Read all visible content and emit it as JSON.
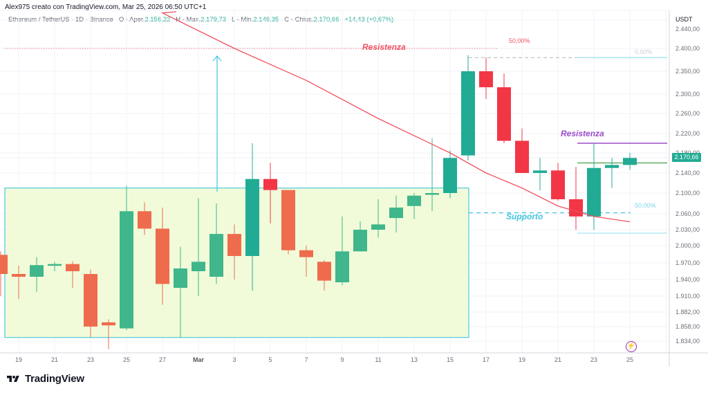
{
  "header": {
    "credit": "Alex975 creato con TradingView.com, Mar 25, 2026 06:50 UTC+1",
    "symbol": "Ethereum / TetherUS · 1D · Binance",
    "open_label": "O - Aper.",
    "open_value": "2.156,22",
    "high_label": "H - Max.",
    "high_value": "2.179,73",
    "low_label": "L - Min.",
    "low_value": "2.146,35",
    "close_label": "C - Chius.",
    "close_value": "2.170,66",
    "change": "+14,43 (+0,67%)"
  },
  "price_axis": {
    "unit": "USDT",
    "current_price": "2.170,66",
    "ticks": [
      "2.440,00",
      "2.400,00",
      "2.350,00",
      "2.300,00",
      "2.260,00",
      "2.220,00",
      "2.180,00",
      "2.140,00",
      "2.100,00",
      "2.060,00",
      "2.030,00",
      "2.000,00",
      "1.970,00",
      "1.940,00",
      "1.910,00",
      "1.882,00",
      "1.858,00",
      "1.834,00"
    ]
  },
  "time_axis": {
    "ticks": [
      "19",
      "21",
      "23",
      "25",
      "27",
      "Mar",
      "3",
      "5",
      "7",
      "9",
      "11",
      "13",
      "15",
      "17",
      "19",
      "21",
      "23",
      "25"
    ]
  },
  "annotations": {
    "resistance_top": "Resistenza",
    "resistance_right": "Resistenza",
    "support": "Supporto",
    "fib_50_top": "50,00%",
    "fib_0": "0,00%",
    "fib_50_bottom": "50,00%"
  },
  "branding": {
    "logo_text": "TradingView"
  },
  "colors": {
    "up": "#22ab94",
    "down": "#f23645",
    "up_in_box": "#3fb68b",
    "down_in_box": "#ee6c4d",
    "ma_line": "#f0525f",
    "box_fill": "#f1fbd9",
    "box_border": "#4dc9dc",
    "resistance_purple": "#9c4bc7",
    "support_cyan": "#3fc6e0"
  },
  "chart_data": {
    "type": "candlestick",
    "title": "Ethereum / TetherUS · 1D · Binance",
    "xlabel": "",
    "ylabel": "USDT",
    "ylim": [
      1820,
      2450
    ],
    "grid": true,
    "categories": [
      "Feb 18",
      "Feb 19",
      "Feb 20",
      "Feb 21",
      "Feb 22",
      "Feb 23",
      "Feb 24",
      "Feb 25",
      "Feb 26",
      "Feb 27",
      "Feb 28",
      "Mar 1",
      "Mar 2",
      "Mar 3",
      "Mar 4",
      "Mar 5",
      "Mar 6",
      "Mar 7",
      "Mar 8",
      "Mar 9",
      "Mar 10",
      "Mar 11",
      "Mar 12",
      "Mar 13",
      "Mar 14",
      "Mar 15",
      "Mar 16",
      "Mar 17",
      "Mar 18",
      "Mar 19",
      "Mar 20",
      "Mar 21",
      "Mar 22",
      "Mar 23",
      "Mar 24",
      "Mar 25"
    ],
    "series": [
      {
        "name": "open",
        "values": [
          1984,
          1950,
          1945,
          1966,
          1968,
          1950,
          1865,
          1855,
          2065,
          2032,
          1925,
          1955,
          1945,
          2022,
          1982,
          2128,
          2106,
          1992,
          1972,
          1935,
          1990,
          2030,
          2052,
          2075,
          2100,
          2100,
          2175,
          2350,
          2315,
          2205,
          2140,
          2145,
          2088,
          2055,
          2150,
          2156
        ]
      },
      {
        "name": "high",
        "values": [
          1990,
          1965,
          1980,
          1972,
          1973,
          1958,
          1870,
          2115,
          2082,
          2072,
          1998,
          2090,
          2080,
          2040,
          2200,
          2160,
          2095,
          2000,
          1975,
          2055,
          2046,
          2088,
          2095,
          2100,
          2210,
          2185,
          2385,
          2380,
          2345,
          2230,
          2170,
          2160,
          2152,
          2200,
          2170,
          2180
        ]
      },
      {
        "name": "low",
        "values": [
          1910,
          1905,
          1918,
          1955,
          1925,
          1840,
          1820,
          1852,
          2020,
          1895,
          1840,
          1910,
          1932,
          1940,
          1920,
          2042,
          1985,
          1945,
          1920,
          1930,
          1990,
          2015,
          2025,
          2050,
          2065,
          2090,
          2165,
          2290,
          2200,
          2145,
          2105,
          2085,
          2030,
          2030,
          2110,
          2146
        ]
      },
      {
        "name": "close",
        "values": [
          1950,
          1945,
          1966,
          1968,
          1955,
          1858,
          1860,
          2065,
          2032,
          1932,
          1960,
          1972,
          2022,
          1982,
          2128,
          2106,
          1992,
          1980,
          1938,
          1990,
          2030,
          2040,
          2072,
          2095,
          2100,
          2170,
          2350,
          2315,
          2205,
          2140,
          2145,
          2088,
          2055,
          2150,
          2156,
          2170
        ]
      }
    ],
    "moving_average": {
      "name": "MA",
      "points": [
        [
          "Feb 27",
          2450
        ],
        [
          "Mar 3",
          2400
        ],
        [
          "Mar 7",
          2330
        ],
        [
          "Mar 11",
          2250
        ],
        [
          "Mar 15",
          2180
        ],
        [
          "Mar 17",
          2140
        ],
        [
          "Mar 19",
          2110
        ],
        [
          "Mar 21",
          2075
        ],
        [
          "Mar 23",
          2055
        ],
        [
          "Mar 25",
          2045
        ]
      ]
    },
    "levels": {
      "resistance_dotted": 2400,
      "support_dashed": 2062,
      "resistance_purple": 2200,
      "green_line": 2160,
      "fib_0": 2380,
      "fib_50_low": 2030,
      "range_box": {
        "from": "Feb 17",
        "to": "Mar 15",
        "top": 2110,
        "bottom": 1840
      }
    }
  }
}
